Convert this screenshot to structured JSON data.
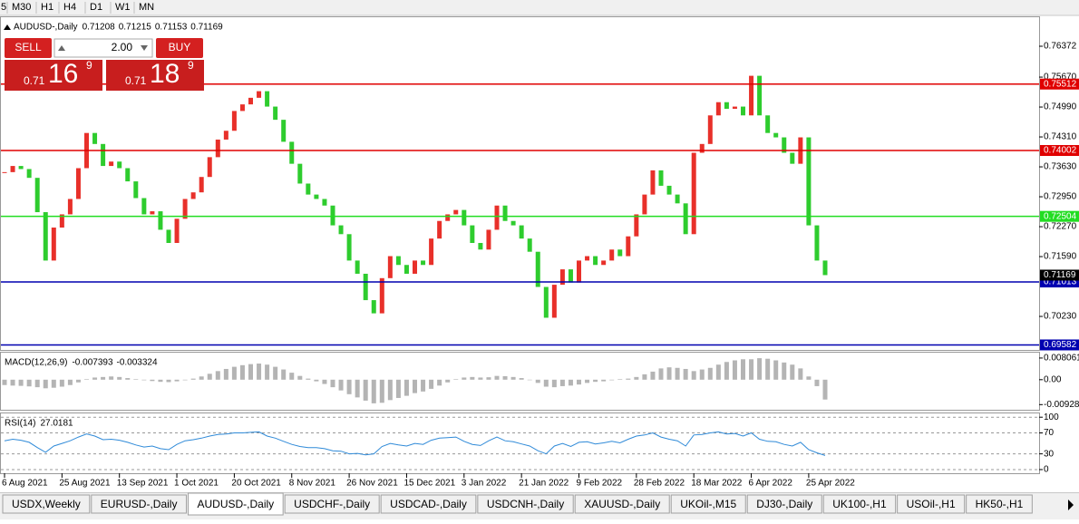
{
  "toolbar": {
    "timeframes": [
      "5",
      "M30",
      "H1",
      "H4",
      "D1",
      "W1",
      "MN"
    ]
  },
  "trade_panel": {
    "sell": "SELL",
    "lot": "2.00",
    "buy": "BUY",
    "bid": {
      "base": "0.71",
      "pips": "16",
      "fraction": "9"
    },
    "ask": {
      "base": "0.71",
      "pips": "18",
      "fraction": "9"
    }
  },
  "chart_data": [
    {
      "type": "candlestick",
      "title": "AUDUSD-,Daily",
      "quote": [
        0.71208,
        0.71215,
        0.71153,
        0.71169
      ],
      "categories": [
        "6 Aug 2021",
        null,
        null,
        null,
        null,
        null,
        null,
        "25 Aug 2021",
        null,
        null,
        null,
        null,
        null,
        null,
        "13 Sep 2021",
        null,
        null,
        null,
        null,
        null,
        null,
        "1 Oct 2021",
        null,
        null,
        null,
        null,
        null,
        null,
        "20 Oct 2021",
        null,
        null,
        null,
        null,
        null,
        null,
        "8 Nov 2021",
        null,
        null,
        null,
        null,
        null,
        null,
        "26 Nov 2021",
        null,
        null,
        null,
        null,
        null,
        null,
        "15 Dec 2021",
        null,
        null,
        null,
        null,
        null,
        null,
        "3 Jan 2022",
        null,
        null,
        null,
        null,
        null,
        null,
        "21 Jan 2022",
        null,
        null,
        null,
        null,
        null,
        null,
        "9 Feb 2022",
        null,
        null,
        null,
        null,
        null,
        null,
        "28 Feb 2022",
        null,
        null,
        null,
        null,
        null,
        null,
        "18 Mar 2022",
        null,
        null,
        null,
        null,
        null,
        null,
        "6 Apr 2022",
        null,
        null,
        null,
        null,
        null,
        null,
        "25 Apr 2022",
        null,
        null
      ],
      "values": [
        0.7351,
        0.7365,
        0.7358,
        0.7338,
        0.726,
        0.715,
        0.7225,
        0.7255,
        0.729,
        0.736,
        0.744,
        0.7415,
        0.7365,
        0.7375,
        0.736,
        0.733,
        0.7292,
        0.7255,
        0.7262,
        0.722,
        0.719,
        0.7245,
        0.729,
        0.7305,
        0.734,
        0.7385,
        0.7425,
        0.7445,
        0.749,
        0.7505,
        0.752,
        0.7535,
        0.75,
        0.747,
        0.742,
        0.737,
        0.7325,
        0.73,
        0.729,
        0.7275,
        0.723,
        0.721,
        0.715,
        0.712,
        0.706,
        0.703,
        0.711,
        0.716,
        0.714,
        0.712,
        0.715,
        0.714,
        0.72,
        0.724,
        0.7255,
        0.7265,
        0.723,
        0.719,
        0.7175,
        0.722,
        0.7275,
        0.724,
        0.723,
        0.72,
        0.717,
        0.709,
        0.702,
        0.7095,
        0.713,
        0.71,
        0.715,
        0.716,
        0.714,
        0.715,
        0.7175,
        0.716,
        0.7205,
        0.7255,
        0.73,
        0.7355,
        0.732,
        0.73,
        0.728,
        0.721,
        0.7395,
        0.7415,
        0.748,
        0.751,
        0.7495,
        0.75,
        0.748,
        0.757,
        0.748,
        0.744,
        0.743,
        0.7395,
        0.737,
        0.743,
        0.723,
        0.715,
        0.71169
      ],
      "up_color": "#e8302a",
      "down_color": "#2ecc2e",
      "ylim": [
        0.69468,
        0.77052
      ],
      "yticks": [
        0.76372,
        {
          "value": 0.7567,
          "label": "0.75670"
        },
        {
          "value": 0.7499,
          "label": "0.74990"
        },
        {
          "value": 0.7431,
          "label": "0.74310"
        },
        {
          "value": 0.7363,
          "label": "0.73630"
        },
        {
          "value": 0.7295,
          "label": "0.72950"
        },
        {
          "value": 0.7227,
          "label": "0.72270"
        },
        {
          "value": 0.7159,
          "label": "0.71590"
        },
        {
          "value": 0.7023,
          "label": "0.70230"
        }
      ],
      "levels": [
        {
          "value": 0.75512,
          "color": "#e00000"
        },
        {
          "value": 0.74002,
          "color": "#e00000"
        },
        {
          "value": 0.72504,
          "color": "#22dd22"
        },
        {
          "value": 0.71013,
          "color": "#0000b0"
        },
        {
          "value": 0.69582,
          "color": "#0000b0"
        }
      ],
      "last_price": 0.71169
    },
    {
      "type": "bar",
      "title": "MACD(12,26,9)",
      "readout": [
        -0.007393,
        -0.003324
      ],
      "values": [
        -0.002,
        -0.0022,
        -0.0023,
        -0.0025,
        -0.0028,
        -0.0032,
        -0.003,
        -0.0026,
        -0.002,
        -0.001,
        0.0002,
        0.0008,
        0.001,
        0.0012,
        0.001,
        0.0006,
        0.0002,
        -0.0002,
        -0.0005,
        -0.0008,
        -0.0009,
        -0.0006,
        -0.0002,
        0.0004,
        0.0012,
        0.0022,
        0.0032,
        0.004,
        0.0048,
        0.0054,
        0.0058,
        0.006,
        0.0056,
        0.0048,
        0.0038,
        0.0026,
        0.0014,
        0.0004,
        -0.0006,
        -0.0016,
        -0.0028,
        -0.004,
        -0.0054,
        -0.0066,
        -0.0078,
        -0.0088,
        -0.0086,
        -0.0076,
        -0.0068,
        -0.006,
        -0.005,
        -0.0044,
        -0.0034,
        -0.0022,
        -0.001,
        0.0002,
        0.0008,
        0.001,
        0.0008,
        0.0009,
        0.0014,
        0.0013,
        0.001,
        0.0006,
        0,
        -0.0012,
        -0.0026,
        -0.0028,
        -0.0024,
        -0.0022,
        -0.0018,
        -0.0012,
        -0.0008,
        -0.0006,
        -0.0002,
        0.0002,
        0.0004,
        0.001,
        0.002,
        0.003,
        0.0042,
        0.0046,
        0.0044,
        0.004,
        0.0032,
        0.0038,
        0.0044,
        0.0056,
        0.0066,
        0.0072,
        0.0076,
        0.0076,
        0.008,
        0.0078,
        0.0072,
        0.0064,
        0.0056,
        0.0042,
        0.0012,
        -0.0024,
        -0.007393
      ],
      "color": "#b4b4b4",
      "ylim": [
        -0.0112,
        0.0104
      ],
      "yticks": [
        0.008061,
        {
          "value": 0,
          "label": "0.00"
        },
        -0.00928
      ]
    },
    {
      "type": "line",
      "title": "RSI(14)",
      "readout": 27.0181,
      "values": [
        55,
        58,
        56,
        52,
        42,
        33,
        45,
        50,
        55,
        62,
        68,
        64,
        57,
        58,
        56,
        52,
        47,
        43,
        45,
        40,
        38,
        48,
        55,
        57,
        60,
        64,
        67,
        68,
        70,
        70,
        71,
        72,
        64,
        60,
        54,
        48,
        44,
        42,
        42,
        40,
        36,
        35,
        30,
        31,
        28,
        30,
        44,
        50,
        47,
        45,
        50,
        48,
        56,
        60,
        61,
        62,
        54,
        48,
        46,
        55,
        62,
        55,
        53,
        49,
        45,
        36,
        30,
        45,
        50,
        44,
        52,
        53,
        49,
        51,
        54,
        51,
        58,
        64,
        66,
        70,
        62,
        58,
        55,
        45,
        66,
        67,
        70,
        72,
        68,
        69,
        64,
        70,
        58,
        54,
        53,
        48,
        45,
        52,
        38,
        32,
        27.0181
      ],
      "color": "#2f8ad8",
      "ylim": [
        -7,
        109
      ],
      "yticks": [
        100,
        70,
        30,
        0
      ],
      "grid": true
    }
  ],
  "tabs": [
    "USDX,Weekly",
    "EURUSD-,Daily",
    "AUDUSD-,Daily",
    "USDCHF-,Daily",
    "USDCAD-,Daily",
    "USDCNH-,Daily",
    "XAUUSD-,Daily",
    "UKOil-,M15",
    "DJ30-,Daily",
    "UK100-,H1",
    "USOil-,H1",
    "HK50-,H1"
  ],
  "active_tab": "AUDUSD-,Daily"
}
